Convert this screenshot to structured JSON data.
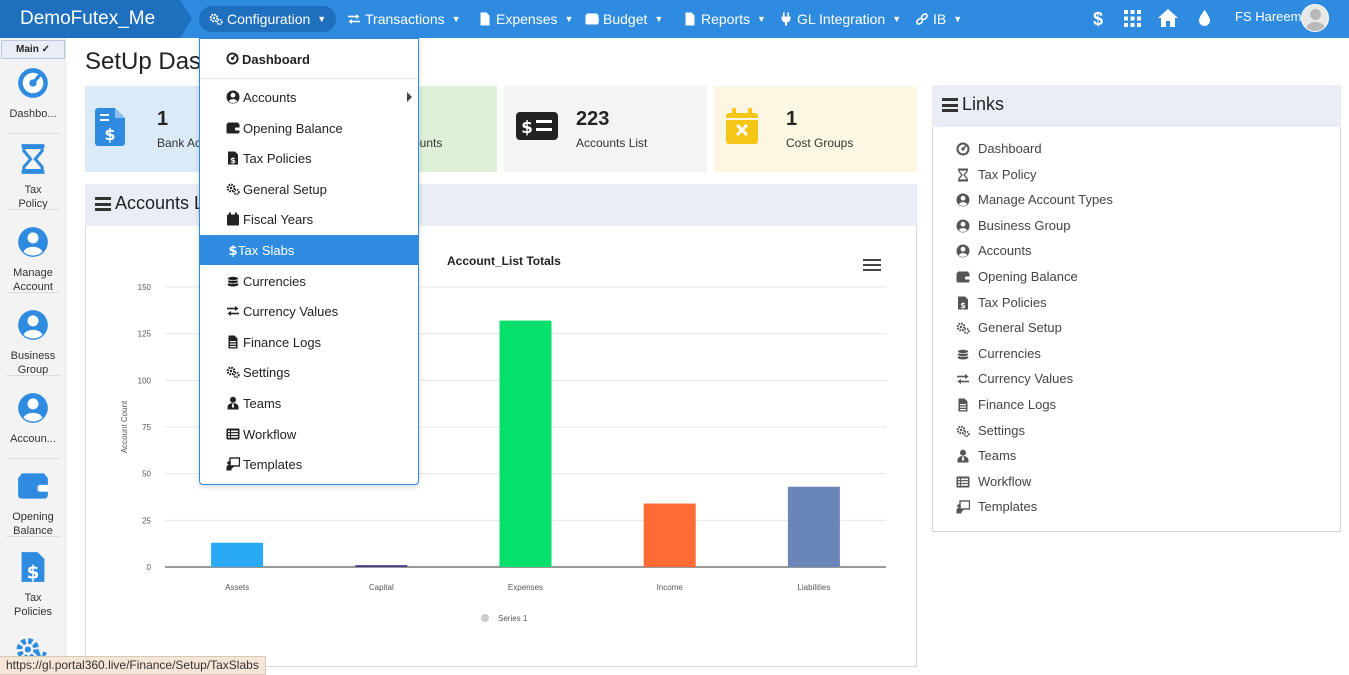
{
  "app": {
    "brand": "DemoFutex_Me",
    "user_name": "FS Hareem"
  },
  "nav": [
    {
      "label": "Configuration",
      "icon": "cogs-icon",
      "active": true
    },
    {
      "label": "Transactions",
      "icon": "exchange-icon"
    },
    {
      "label": "Expenses",
      "icon": "file-icon"
    },
    {
      "label": "Budget",
      "icon": "wallet-icon"
    },
    {
      "label": "Reports",
      "icon": "file-icon"
    },
    {
      "label": "GL Integration",
      "icon": "plug-icon"
    },
    {
      "label": "IB",
      "icon": "link-icon"
    }
  ],
  "topbar_icons": [
    "dollar-icon",
    "grid-icon",
    "home-icon",
    "drop-icon"
  ],
  "sidebar": {
    "tab": "Main ✓",
    "items": [
      {
        "label": "Dashbo...",
        "icon": "dashboard-icon"
      },
      {
        "label": "Tax\nPolicy",
        "icon": "hourglass-icon"
      },
      {
        "label": "Manage\nAccount",
        "icon": "user-circle-icon"
      },
      {
        "label": "Business\nGroup",
        "icon": "user-circle-icon"
      },
      {
        "label": "Accoun...",
        "icon": "user-circle-icon"
      },
      {
        "label": "Opening\nBalance",
        "icon": "wallet-icon"
      },
      {
        "label": "Tax\nPolicies",
        "icon": "file-invoice-dollar-icon"
      }
    ]
  },
  "page": {
    "title": "SetUp Dashboard"
  },
  "cards": [
    {
      "value": "1",
      "label": "Bank Accounts",
      "bg": "#dbeaf7"
    },
    {
      "value": "",
      "label": "ounts",
      "bg": "#dff0d8"
    },
    {
      "value": "223",
      "label": "Accounts List",
      "bg": "#f4f4f4"
    },
    {
      "value": "1",
      "label": "Cost Groups",
      "bg": "#fcf7e2"
    }
  ],
  "panel": {
    "title": "Accounts List"
  },
  "chart_data": {
    "type": "bar",
    "title": "Account_List Totals",
    "ylabel": "Account Count",
    "xlabel": "",
    "categories": [
      "Assets",
      "Capital",
      "Expenses",
      "Income",
      "Liabilities"
    ],
    "series": [
      {
        "name": "Series 1",
        "values": [
          13,
          1,
          132,
          34,
          43
        ]
      }
    ],
    "colors": [
      "#2aa9f5",
      "#4a3d8f",
      "#06e06a",
      "#ff6b35",
      "#6a86b8"
    ],
    "ylim": [
      0,
      150
    ],
    "yticks": [
      0,
      25,
      50,
      75,
      100,
      125,
      150
    ],
    "grid": true,
    "legend": "bottom-center"
  },
  "dropdown": {
    "header": "Dashboard",
    "items": [
      {
        "label": "Accounts",
        "icon": "user-circle-icon",
        "submenu": true
      },
      {
        "label": "Opening Balance",
        "icon": "wallet-icon"
      },
      {
        "label": "Tax Policies",
        "icon": "file-invoice-dollar-icon"
      },
      {
        "label": "General Setup",
        "icon": "cogs-icon"
      },
      {
        "label": "Fiscal Years",
        "icon": "calendar-icon"
      },
      {
        "label": "Tax Slabs",
        "icon": "dollar-icon",
        "active": true
      },
      {
        "label": "Currencies",
        "icon": "coins-icon"
      },
      {
        "label": "Currency Values",
        "icon": "exchange-icon"
      },
      {
        "label": "Finance Logs",
        "icon": "file-icon"
      },
      {
        "label": "Settings",
        "icon": "cogs-icon"
      },
      {
        "label": "Teams",
        "icon": "user-tie-icon"
      },
      {
        "label": "Workflow",
        "icon": "list-icon"
      },
      {
        "label": "Templates",
        "icon": "chalkboard-icon"
      }
    ]
  },
  "links": {
    "title": "Links",
    "items": [
      {
        "label": "Dashboard",
        "icon": "dashboard-icon"
      },
      {
        "label": "Tax Policy",
        "icon": "hourglass-icon"
      },
      {
        "label": "Manage Account Types",
        "icon": "user-circle-icon"
      },
      {
        "label": "Business Group",
        "icon": "user-circle-icon"
      },
      {
        "label": "Accounts",
        "icon": "user-circle-icon"
      },
      {
        "label": "Opening Balance",
        "icon": "wallet-icon"
      },
      {
        "label": "Tax Policies",
        "icon": "file-invoice-dollar-icon"
      },
      {
        "label": "General Setup",
        "icon": "cogs-icon"
      },
      {
        "label": "Currencies",
        "icon": "coins-icon"
      },
      {
        "label": "Currency Values",
        "icon": "exchange-icon"
      },
      {
        "label": "Finance Logs",
        "icon": "file-icon"
      },
      {
        "label": "Settings",
        "icon": "cogs-icon"
      },
      {
        "label": "Teams",
        "icon": "user-tie-icon"
      },
      {
        "label": "Workflow",
        "icon": "list-icon"
      },
      {
        "label": "Templates",
        "icon": "chalkboard-icon"
      }
    ]
  },
  "status_url": "https://gl.portal360.live/Finance/Setup/TaxSlabs"
}
